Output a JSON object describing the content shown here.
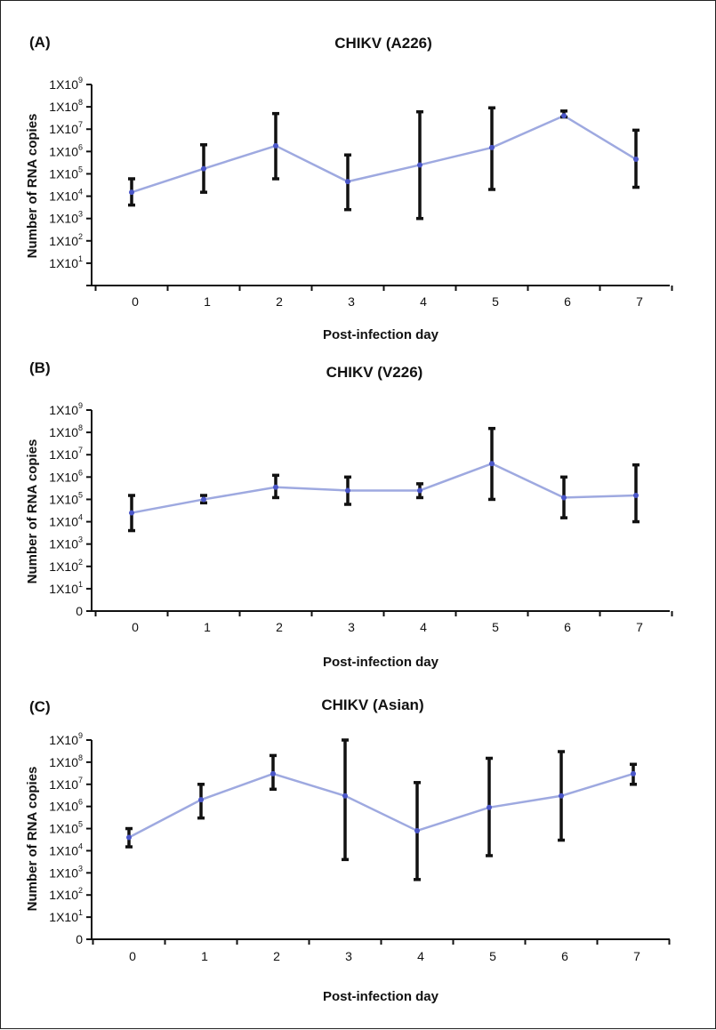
{
  "chart_data": [
    {
      "type": "line",
      "panel_label": "(A)",
      "title": "CHIKV (A226)",
      "xlabel": "Post-infection day",
      "ylabel": "Number of RNA copies",
      "y_scale": "log10",
      "ylim": [
        1,
        1000000000
      ],
      "yticks": [
        {
          "base": "",
          "exp": "",
          "label": ""
        },
        {
          "base": "1X10",
          "exp": "1"
        },
        {
          "base": "1X10",
          "exp": "2"
        },
        {
          "base": "1X10",
          "exp": "3"
        },
        {
          "base": "1X10",
          "exp": "4"
        },
        {
          "base": "1X10",
          "exp": "5"
        },
        {
          "base": "1X10",
          "exp": "6"
        },
        {
          "base": "1X10",
          "exp": "7"
        },
        {
          "base": "1X10",
          "exp": "8"
        },
        {
          "base": "1X10",
          "exp": "9"
        }
      ],
      "x": [
        "0",
        "1",
        "2",
        "3",
        "4",
        "5",
        "6",
        "7"
      ],
      "series": [
        {
          "name": "CHIKV (A226)",
          "values": [
            15000,
            170000,
            1800000,
            45000,
            250000,
            1500000,
            40000000,
            450000
          ],
          "err_high": [
            60000,
            2000000,
            50000000,
            700000,
            60000000,
            90000000,
            65000000,
            9000000
          ],
          "err_low": [
            4000,
            15000,
            60000,
            2500,
            1000,
            20000,
            35000000,
            25000
          ]
        }
      ],
      "colors": {
        "line": "#9ea9e0",
        "marker": "#4a56c8",
        "error_bar": "#111111"
      }
    },
    {
      "type": "line",
      "panel_label": "(B)",
      "title": "CHIKV (V226)",
      "xlabel": "Post-infection day",
      "ylabel": "Number of RNA copies",
      "y_scale": "log10",
      "ylim": [
        1,
        1000000000
      ],
      "yticks": [
        {
          "base": "",
          "exp": "",
          "label": "0"
        },
        {
          "base": "1X10",
          "exp": "1"
        },
        {
          "base": "1X10",
          "exp": "2"
        },
        {
          "base": "1X10",
          "exp": "3"
        },
        {
          "base": "1X10",
          "exp": "4"
        },
        {
          "base": "1X10",
          "exp": "5"
        },
        {
          "base": "1X10",
          "exp": "6"
        },
        {
          "base": "1X10",
          "exp": "7"
        },
        {
          "base": "1X10",
          "exp": "8"
        },
        {
          "base": "1X10",
          "exp": "9"
        }
      ],
      "x": [
        "0",
        "1",
        "2",
        "3",
        "4",
        "5",
        "6",
        "7"
      ],
      "series": [
        {
          "name": "CHIKV (V226)",
          "values": [
            25000,
            100000,
            350000,
            250000,
            250000,
            4000000,
            120000,
            150000
          ],
          "err_high": [
            150000,
            150000,
            1200000,
            1000000,
            500000,
            150000000,
            1000000,
            3500000
          ],
          "err_low": [
            4000,
            70000,
            120000,
            60000,
            120000,
            100000,
            15000,
            10000
          ]
        }
      ],
      "colors": {
        "line": "#9ea9e0",
        "marker": "#4a56c8",
        "error_bar": "#111111"
      }
    },
    {
      "type": "line",
      "panel_label": "(C)",
      "title": "CHIKV (Asian)",
      "xlabel": "Post-infection day",
      "ylabel": "Number of RNA copies",
      "y_scale": "log10",
      "ylim": [
        1,
        1000000000
      ],
      "yticks": [
        {
          "base": "",
          "exp": "",
          "label": "0"
        },
        {
          "base": "1X10",
          "exp": "1"
        },
        {
          "base": "1X10",
          "exp": "2"
        },
        {
          "base": "1X10",
          "exp": "3"
        },
        {
          "base": "1X10",
          "exp": "4"
        },
        {
          "base": "1X10",
          "exp": "5"
        },
        {
          "base": "1X10",
          "exp": "6"
        },
        {
          "base": "1X10",
          "exp": "7"
        },
        {
          "base": "1X10",
          "exp": "8"
        },
        {
          "base": "1X10",
          "exp": "9"
        }
      ],
      "x": [
        "0",
        "1",
        "2",
        "3",
        "4",
        "5",
        "6",
        "7"
      ],
      "series": [
        {
          "name": "CHIKV (Asian)",
          "values": [
            40000,
            2000000,
            30000000,
            3000000,
            80000,
            900000,
            3000000,
            30000000
          ],
          "err_high": [
            100000,
            10000000,
            200000000,
            1000000000,
            12000000,
            150000000,
            300000000,
            80000000
          ],
          "err_low": [
            15000,
            300000,
            6000000,
            4000,
            500,
            6000,
            30000,
            10000000
          ]
        }
      ],
      "colors": {
        "line": "#9ea9e0",
        "marker": "#4a56c8",
        "error_bar": "#111111"
      }
    }
  ]
}
